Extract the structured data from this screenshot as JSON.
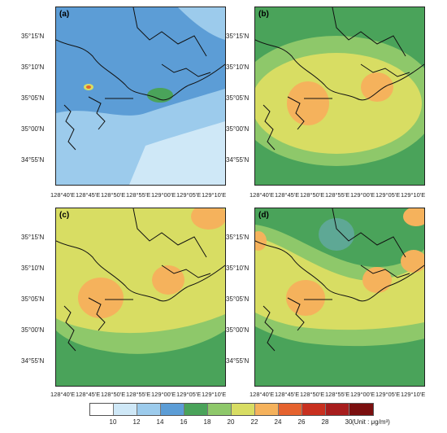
{
  "panels": [
    {
      "label": "(a)"
    },
    {
      "label": "(b)"
    },
    {
      "label": "(c)"
    },
    {
      "label": "(d)"
    }
  ],
  "lat_labels": [
    "35°15'N",
    "35°10'N",
    "35°05'N",
    "35°00'N",
    "34°55'N"
  ],
  "lon_labels": [
    "128°40'E",
    "128°45'E",
    "128°50'E",
    "128°55'E",
    "129°00'E",
    "129°05'E",
    "129°10'E"
  ],
  "colorbar": {
    "ticks": [
      "10",
      "12",
      "14",
      "16",
      "18",
      "20",
      "22",
      "24",
      "26",
      "28",
      "30"
    ],
    "colors": [
      "#ffffff",
      "#cfe8f7",
      "#9ccbec",
      "#5c9dd6",
      "#4aa35a",
      "#8ec86a",
      "#d8dd63",
      "#f5b25c",
      "#e5622e",
      "#c8301f",
      "#a71d1d",
      "#7a0f0f"
    ],
    "unit": "(Unit : μg/m³)"
  }
}
